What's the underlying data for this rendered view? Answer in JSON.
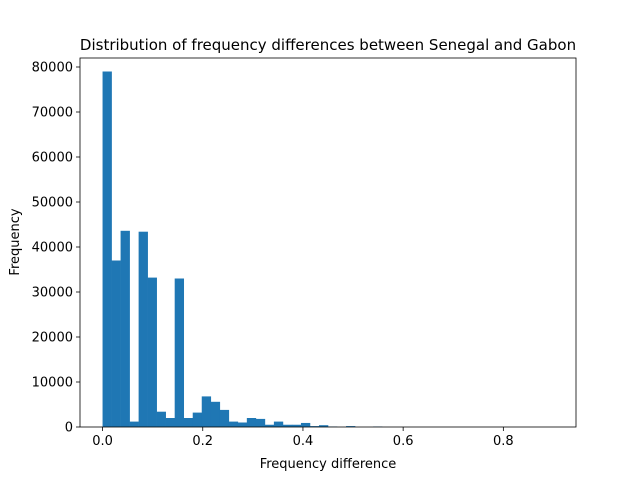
{
  "chart_data": {
    "type": "bar",
    "title": "Distribution of frequency differences between Senegal and Gabon",
    "xlabel": "Frequency difference",
    "ylabel": "Frequency",
    "xlim": [
      -0.045,
      0.945
    ],
    "ylim": [
      0,
      82000
    ],
    "xticks": [
      0.0,
      0.2,
      0.4,
      0.6,
      0.8
    ],
    "xtick_labels": [
      "0.0",
      "0.2",
      "0.4",
      "0.6",
      "0.8"
    ],
    "yticks": [
      0,
      10000,
      20000,
      30000,
      40000,
      50000,
      60000,
      70000,
      80000
    ],
    "ytick_labels": [
      "0",
      "10000",
      "20000",
      "30000",
      "40000",
      "50000",
      "60000",
      "70000",
      "80000"
    ],
    "bar_color": "#1f77b4",
    "bin_start": 0.0,
    "bin_width": 0.018,
    "bin_count": 50,
    "values": [
      79000,
      37000,
      43600,
      1200,
      43400,
      33200,
      3400,
      2000,
      33000,
      2000,
      3200,
      6800,
      5600,
      3800,
      1200,
      1000,
      2000,
      1800,
      500,
      1200,
      500,
      500,
      900,
      200,
      400,
      100,
      0,
      200,
      0,
      0,
      100,
      0,
      0,
      0,
      0,
      0,
      0,
      0,
      0,
      0,
      0,
      0,
      0,
      0,
      0,
      0,
      0,
      0,
      0,
      0
    ],
    "grid": false,
    "legend": "none"
  }
}
